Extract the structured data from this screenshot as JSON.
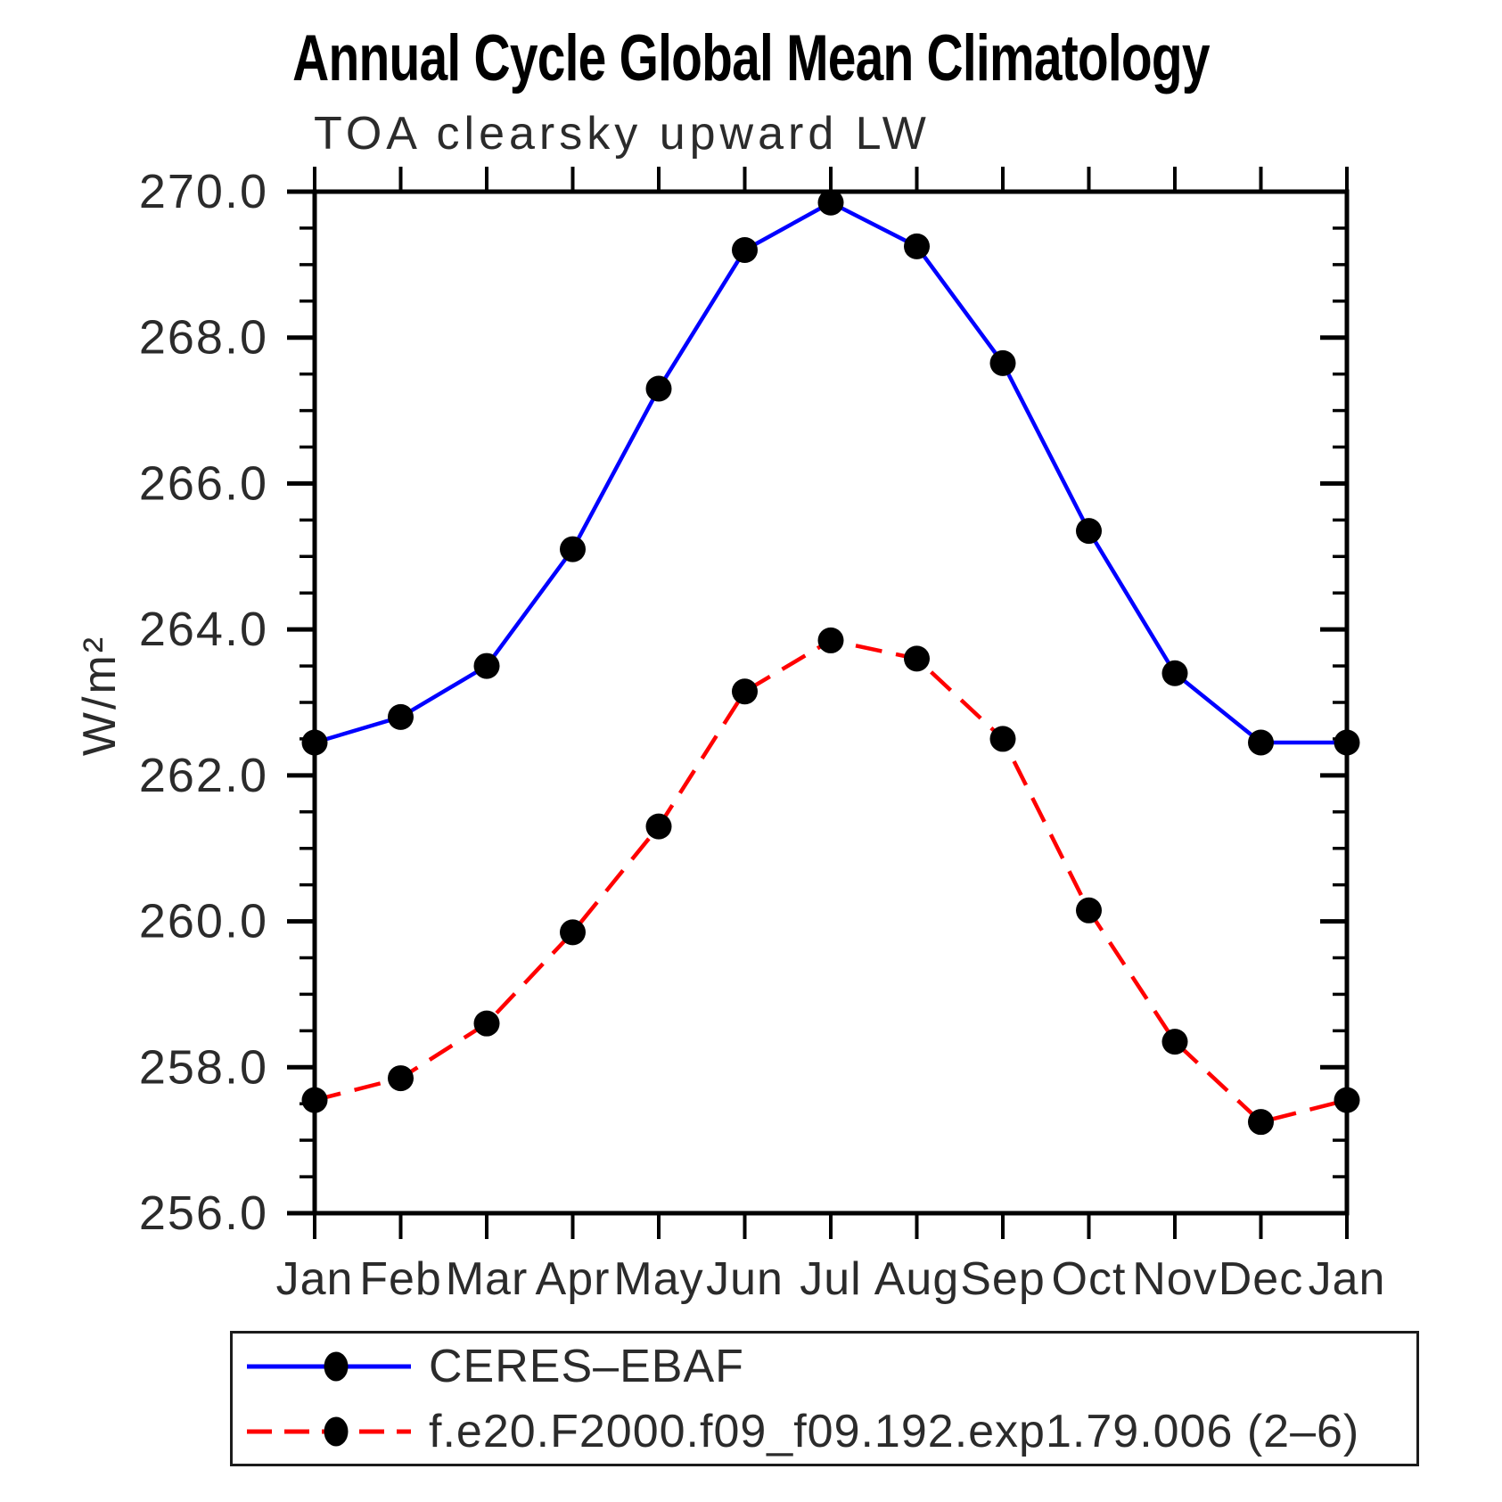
{
  "page": {
    "background_color": "#ffffff"
  },
  "chart_data": {
    "type": "line",
    "title": "Annual Cycle Global Mean Climatology",
    "subtitle": "TOA clearsky upward LW",
    "ylabel": "W/m²",
    "xlabel": "",
    "x_categories": [
      "Jan",
      "Feb",
      "Mar",
      "Apr",
      "May",
      "Jun",
      "Jul",
      "Aug",
      "Sep",
      "Oct",
      "Nov",
      "Dec",
      "Jan"
    ],
    "ylim": [
      256.0,
      270.0
    ],
    "y_major_tick_step": 2.0,
    "y_minor_tick_step": 0.5,
    "y_tick_labels": [
      "270.0",
      "268.0",
      "266.0",
      "264.0",
      "262.0",
      "260.0",
      "258.0",
      "256.0"
    ],
    "grid": false,
    "legend_position": "bottom-left-box",
    "axis_color": "#000000",
    "series": [
      {
        "name": "CERES–EBAF",
        "line_style": "solid",
        "line_color": "#0000ff",
        "marker": "circle",
        "marker_color": "#000000",
        "values": [
          262.45,
          262.8,
          263.5,
          265.1,
          267.3,
          269.2,
          269.85,
          269.25,
          267.65,
          265.35,
          263.4,
          262.45,
          262.45
        ]
      },
      {
        "name": "f.e20.F2000.f09_f09.192.exp1.79.006 (2–6)",
        "line_style": "dashed",
        "line_color": "#ff0000",
        "marker": "circle",
        "marker_color": "#000000",
        "values": [
          257.55,
          257.85,
          258.6,
          259.85,
          261.3,
          263.15,
          263.85,
          263.6,
          262.5,
          260.15,
          258.35,
          257.25,
          257.55
        ]
      }
    ]
  }
}
